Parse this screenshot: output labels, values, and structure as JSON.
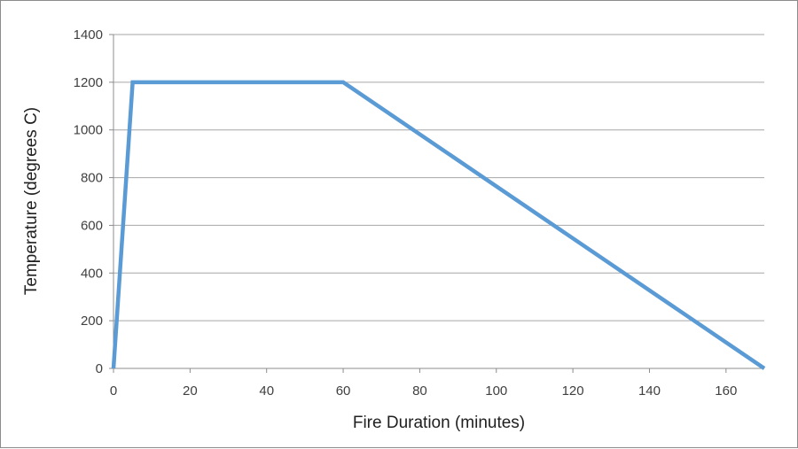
{
  "chart_data": {
    "type": "line",
    "title": "",
    "xlabel": "Fire Duration (minutes)",
    "ylabel": "Temperature (degrees C)",
    "xlim": [
      0,
      170
    ],
    "ylim": [
      0,
      1400
    ],
    "xticks": [
      0,
      20,
      40,
      60,
      80,
      100,
      120,
      140,
      160
    ],
    "yticks": [
      0,
      200,
      400,
      600,
      800,
      1000,
      1200,
      1400
    ],
    "grid": "horizontal",
    "legend": "none",
    "series": [
      {
        "color": "#5b9bd5",
        "x": [
          0,
          5,
          60,
          170
        ],
        "y": [
          0,
          1200,
          1200,
          0
        ]
      }
    ]
  }
}
